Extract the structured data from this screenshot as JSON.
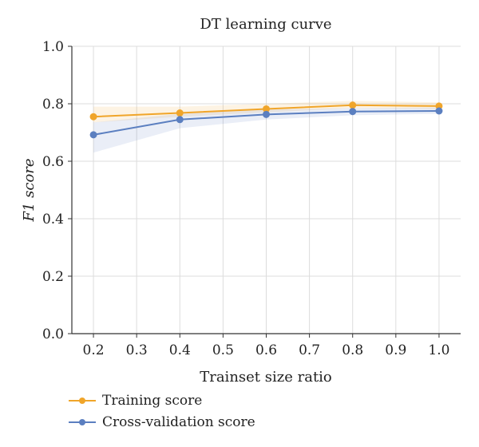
{
  "chart_data": {
    "type": "line",
    "title": "DT learning curve",
    "xlabel": "Trainset size ratio",
    "ylabel": "F1 score",
    "xlim": [
      0.15,
      1.05
    ],
    "ylim": [
      0.0,
      1.0
    ],
    "x_ticks": [
      "0.2",
      "0.3",
      "0.4",
      "0.5",
      "0.6",
      "0.7",
      "0.8",
      "0.9",
      "1.0"
    ],
    "y_ticks": [
      "0.0",
      "0.2",
      "0.4",
      "0.6",
      "0.8",
      "1.0"
    ],
    "grid": true,
    "legend_position": "bottom-left, below plot",
    "x": [
      0.2,
      0.4,
      0.6,
      0.8,
      1.0
    ],
    "series": [
      {
        "name": "Training score",
        "color": "#f0a52a",
        "values": [
          0.755,
          0.768,
          0.782,
          0.795,
          0.792
        ],
        "band_low": [
          0.735,
          0.755,
          0.77,
          0.785,
          0.782
        ],
        "band_high": [
          0.79,
          0.79,
          0.8,
          0.81,
          0.805
        ]
      },
      {
        "name": "Cross-validation score",
        "color": "#5b7fc0",
        "values": [
          0.692,
          0.745,
          0.763,
          0.773,
          0.775
        ],
        "band_low": [
          0.63,
          0.715,
          0.745,
          0.76,
          0.765
        ],
        "band_high": [
          0.735,
          0.765,
          0.78,
          0.785,
          0.787
        ]
      }
    ]
  }
}
